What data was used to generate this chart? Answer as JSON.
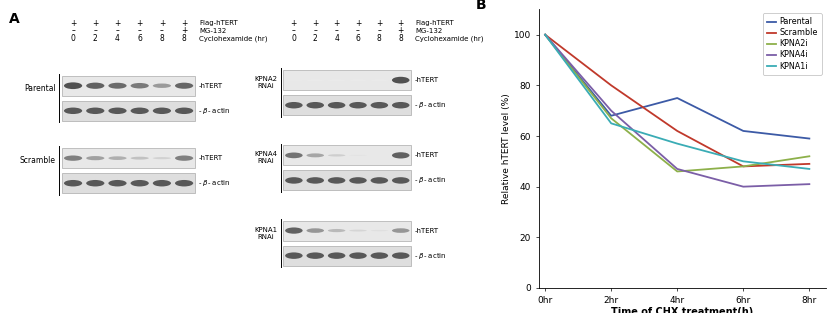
{
  "panel_b": {
    "xlabel": "Time of CHX treatment(h)",
    "ylabel": "Relative hTERT level (%)",
    "x_ticks": [
      "0hr",
      "2hr",
      "4hr",
      "6hr",
      "8hr"
    ],
    "x_vals": [
      0,
      2,
      4,
      6,
      8
    ],
    "ylim": [
      0,
      110
    ],
    "yticks": [
      0,
      20,
      40,
      60,
      80,
      100
    ],
    "series": [
      {
        "label": "Parental",
        "color": "#3c5aa6",
        "values": [
          100,
          68,
          75,
          62,
          59
        ]
      },
      {
        "label": "Scramble",
        "color": "#c0392b",
        "values": [
          100,
          80,
          62,
          48,
          49
        ]
      },
      {
        "label": "KPNA2i",
        "color": "#8db04a",
        "values": [
          100,
          67,
          46,
          48,
          52
        ]
      },
      {
        "label": "KPNA4i",
        "color": "#7b5ea7",
        "values": [
          100,
          70,
          47,
          40,
          41
        ]
      },
      {
        "label": "KPNA1i",
        "color": "#3aacb5",
        "values": [
          100,
          65,
          57,
          50,
          47
        ]
      }
    ],
    "line_width": 1.3
  },
  "left_blots": [
    {
      "row_label": "Parental",
      "htert_bands": [
        0.88,
        0.82,
        0.78,
        0.72,
        0.58,
        0.8
      ],
      "actin_bands": [
        0.85,
        0.85,
        0.85,
        0.85,
        0.85,
        0.85
      ]
    },
    {
      "row_label": "Scramble",
      "htert_bands": [
        0.7,
        0.55,
        0.48,
        0.38,
        0.28,
        0.7
      ],
      "actin_bands": [
        0.85,
        0.85,
        0.85,
        0.85,
        0.85,
        0.85
      ]
    }
  ],
  "right_blots": [
    {
      "row_label": "KPNA2\nRNAi",
      "htert_bands": [
        0.08,
        0.06,
        0.06,
        0.06,
        0.06,
        0.88
      ],
      "actin_bands": [
        0.85,
        0.85,
        0.85,
        0.85,
        0.85,
        0.85
      ]
    },
    {
      "row_label": "KPNA4\nRNAi",
      "htert_bands": [
        0.75,
        0.52,
        0.3,
        0.15,
        0.1,
        0.82
      ],
      "actin_bands": [
        0.85,
        0.85,
        0.85,
        0.85,
        0.85,
        0.85
      ]
    },
    {
      "row_label": "KPNA1\nRNAi",
      "htert_bands": [
        0.82,
        0.6,
        0.42,
        0.25,
        0.18,
        0.6
      ],
      "actin_bands": [
        0.85,
        0.85,
        0.85,
        0.85,
        0.85,
        0.85
      ]
    }
  ],
  "fig_width": 8.3,
  "fig_height": 3.13,
  "bg": "#ffffff"
}
